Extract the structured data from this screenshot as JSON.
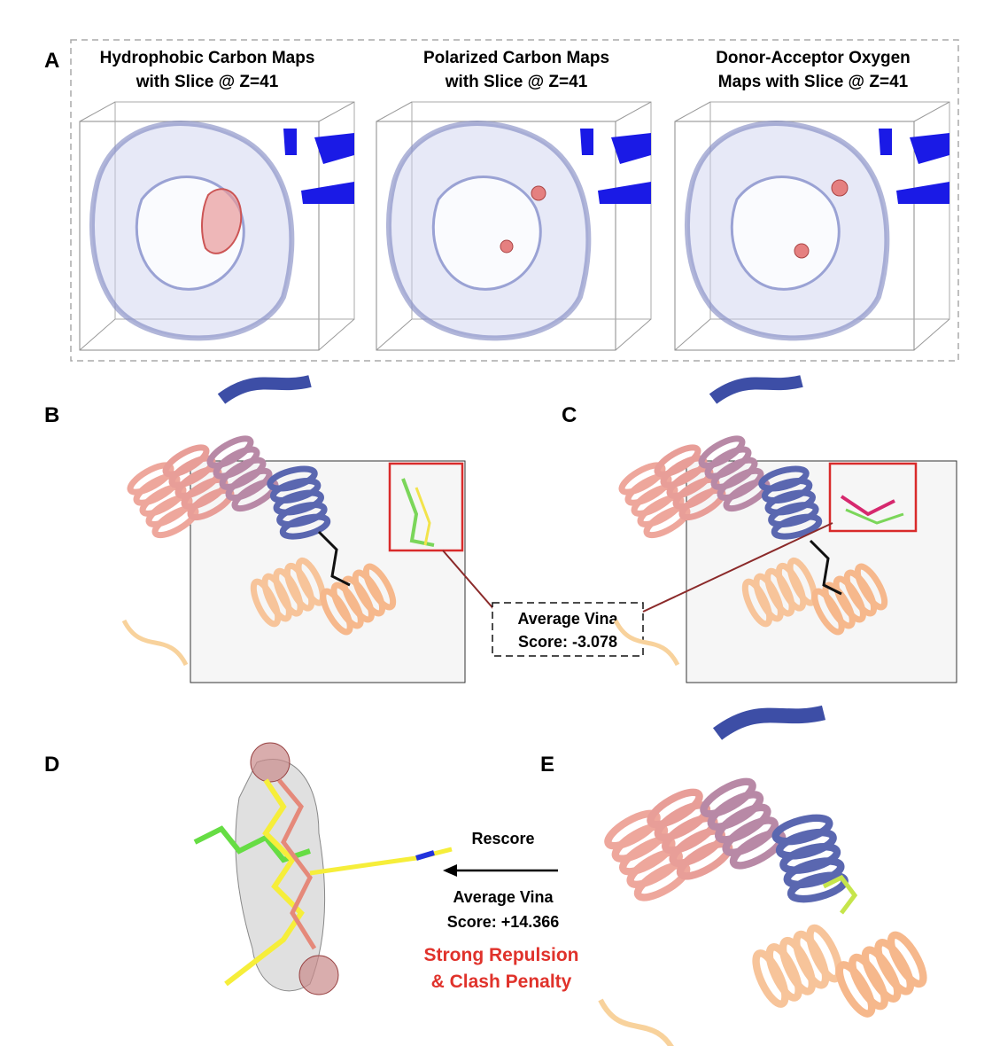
{
  "panel_labels": [
    "A",
    "B",
    "C",
    "D",
    "E"
  ],
  "map_titles": [
    [
      "Hydrophobic Carbon Maps",
      "with Slice @ Z=41"
    ],
    [
      "Polarized Carbon Maps",
      "with Slice @ Z=41"
    ],
    [
      "Donor-Acceptor Oxygen",
      "Maps with Slice @ Z=41"
    ]
  ],
  "score_box": [
    "Average Vina",
    "Score: -3.078"
  ],
  "rescore": {
    "label": "Rescore",
    "score": [
      "Average Vina",
      "Score: +14.366"
    ],
    "penalty": [
      "Strong Repulsion",
      "& Clash Penalty"
    ]
  }
}
